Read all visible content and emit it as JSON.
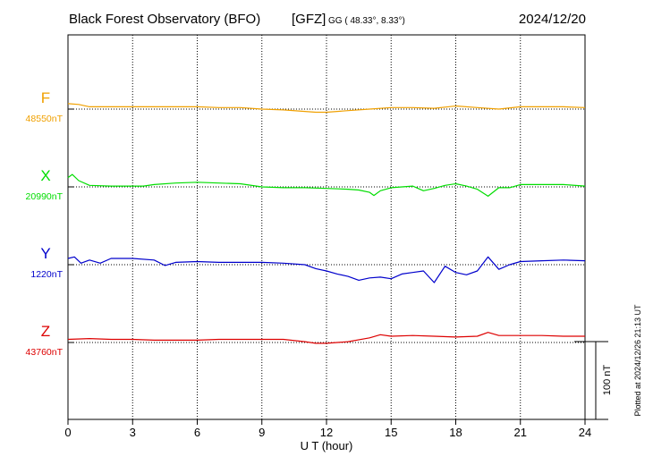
{
  "header": {
    "title": "Black Forest Observatory (BFO)",
    "institute": "[GFZ]",
    "coords": "GG ( 48.33°,   8.33°)",
    "date": "2024/12/20"
  },
  "footer": {
    "xlabel": "U T (hour)",
    "plotted_note": "Plotted at 2024/12/26 21:13 UT",
    "scale_label": "100 nT"
  },
  "chart_data": {
    "type": "line",
    "title": "Black Forest Observatory (BFO)",
    "xlabel": "U T (hour)",
    "ylabel": "",
    "xlim": [
      0,
      24
    ],
    "xticks": [
      0,
      3,
      6,
      9,
      12,
      15,
      18,
      21,
      24
    ],
    "grid": true,
    "scale_bar_nT": 100,
    "series": [
      {
        "name": "F",
        "baseline_label": "48550nT",
        "baseline": 48550,
        "color": "#f0a000",
        "x": [
          0,
          0.5,
          1,
          2,
          3,
          4,
          5,
          6,
          7,
          8,
          9,
          10,
          11,
          11.5,
          12,
          13,
          14,
          15,
          16,
          17,
          18,
          19,
          20,
          21,
          22,
          23,
          24
        ],
        "y": [
          48557,
          48556,
          48553,
          48553,
          48553,
          48553,
          48553,
          48553,
          48552,
          48552,
          48550,
          48549,
          48547,
          48546,
          48546,
          48548,
          48550,
          48552,
          48552,
          48551,
          48554,
          48552,
          48550,
          48553,
          48553,
          48553,
          48552
        ]
      },
      {
        "name": "X",
        "baseline_label": "20990nT",
        "baseline": 20990,
        "color": "#00dd00",
        "x": [
          0,
          0.2,
          0.5,
          1,
          2,
          3,
          3.5,
          4,
          5,
          6,
          7,
          8,
          9,
          10,
          11,
          12,
          13,
          13.5,
          14,
          14.2,
          14.5,
          15,
          16,
          16.5,
          17,
          17.5,
          18,
          18.5,
          19,
          19.5,
          20,
          20.5,
          21,
          22,
          23,
          24
        ],
        "y": [
          21002,
          21006,
          20998,
          20992,
          20991,
          20991,
          20991,
          20993,
          20995,
          20996,
          20995,
          20994,
          20990,
          20989,
          20989,
          20988,
          20987,
          20986,
          20983,
          20979,
          20985,
          20989,
          20991,
          20985,
          20988,
          20992,
          20994,
          20991,
          20987,
          20978,
          20989,
          20989,
          20993,
          20993,
          20993,
          20991
        ]
      },
      {
        "name": "Y",
        "baseline_label": "1220nT",
        "baseline": 1220,
        "color": "#0000cc",
        "x": [
          0,
          0.3,
          0.6,
          1,
          1.5,
          2,
          3,
          4,
          4.5,
          5,
          6,
          7,
          8,
          9,
          10,
          11,
          11.5,
          12,
          12.5,
          13,
          13.5,
          14,
          14.5,
          15,
          15.5,
          16,
          16.5,
          17,
          17.5,
          18,
          18.5,
          19,
          19.5,
          20,
          20.5,
          21,
          22,
          23,
          24
        ],
        "y": [
          1228,
          1230,
          1222,
          1226,
          1222,
          1228,
          1228,
          1226,
          1219,
          1223,
          1224,
          1223,
          1223,
          1223,
          1222,
          1220,
          1215,
          1212,
          1208,
          1205,
          1200,
          1203,
          1204,
          1202,
          1208,
          1210,
          1212,
          1197,
          1218,
          1210,
          1207,
          1212,
          1230,
          1214,
          1220,
          1224,
          1225,
          1226,
          1225
        ]
      },
      {
        "name": "Z",
        "baseline_label": "43760nT",
        "baseline": 43760,
        "color": "#dd0000",
        "x": [
          0,
          1,
          2,
          3,
          4,
          5,
          6,
          7,
          8,
          9,
          10,
          11,
          11.5,
          12,
          13,
          14,
          14.5,
          15,
          16,
          17,
          18,
          19,
          19.5,
          20,
          21,
          22,
          23,
          24
        ],
        "y": [
          43764,
          43765,
          43764,
          43764,
          43763,
          43763,
          43763,
          43764,
          43764,
          43764,
          43764,
          43761,
          43759,
          43759,
          43761,
          43766,
          43770,
          43768,
          43769,
          43768,
          43767,
          43768,
          43773,
          43769,
          43769,
          43769,
          43768,
          43768
        ]
      }
    ]
  }
}
